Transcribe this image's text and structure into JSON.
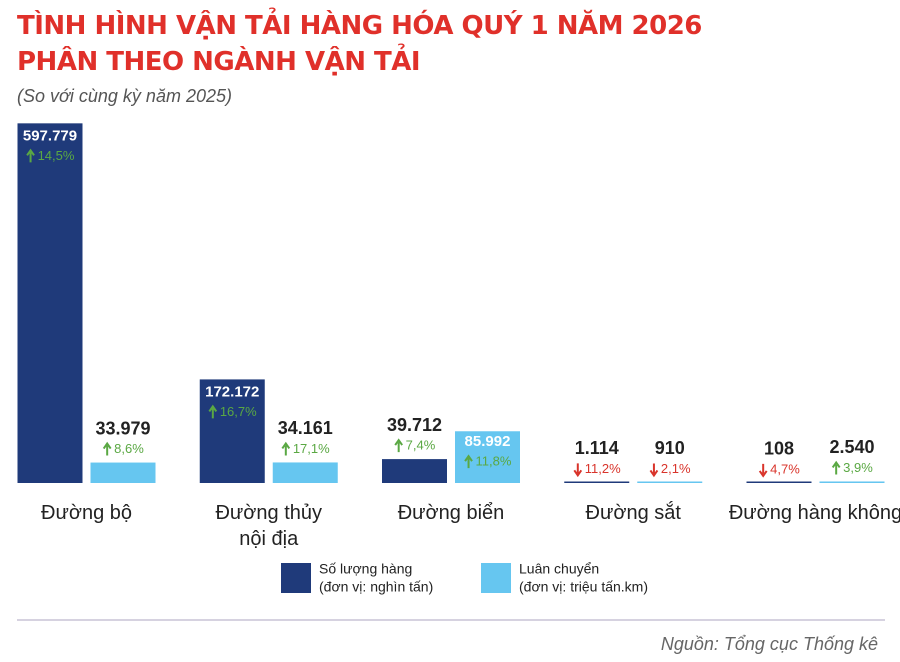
{
  "chart_data": {
    "type": "bar",
    "title": "TÌNH HÌNH VẬN TẢI HÀNG HÓA QUÝ 1 NĂM 2026\nPHÂN THEO NGÀNH VẬN TẢI",
    "subtitle": "(So với cùng kỳ năm 2025)",
    "source": "Nguồn: Tổng cục Thống kê",
    "categories": [
      "Đường bộ",
      "Đường thủy\nnội địa",
      "Đường biển",
      "Đường sắt",
      "Đường hàng không"
    ],
    "series": [
      {
        "name": "Số lượng hàng",
        "unit": "(đơn vị: nghìn tấn)",
        "color": "#1f3a7a",
        "values": [
          597779,
          172172,
          39712,
          1114,
          108
        ],
        "value_labels": [
          "597.779",
          "172.172",
          "39.712",
          "1.114",
          "108"
        ],
        "changes": [
          14.5,
          16.7,
          7.4,
          -11.2,
          -4.7
        ],
        "change_labels": [
          "14,5%",
          "16,7%",
          "7,4%",
          "11,2%",
          "4,7%"
        ]
      },
      {
        "name": "Luân chuyển",
        "unit": "(đơn vị: triệu tấn.km)",
        "color": "#66c6f0",
        "values": [
          33979,
          34161,
          85992,
          910,
          2540
        ],
        "value_labels": [
          "33.979",
          "34.161",
          "85.992",
          "910",
          "2.540"
        ],
        "changes": [
          8.6,
          17.1,
          11.8,
          -2.1,
          3.9
        ],
        "change_labels": [
          "8,6%",
          "17,1%",
          "11,8%",
          "2,1%",
          "3,9%"
        ]
      }
    ],
    "ylim": [
      0,
      600000
    ],
    "up_color": "#5aa843",
    "down_color": "#d9342b"
  }
}
